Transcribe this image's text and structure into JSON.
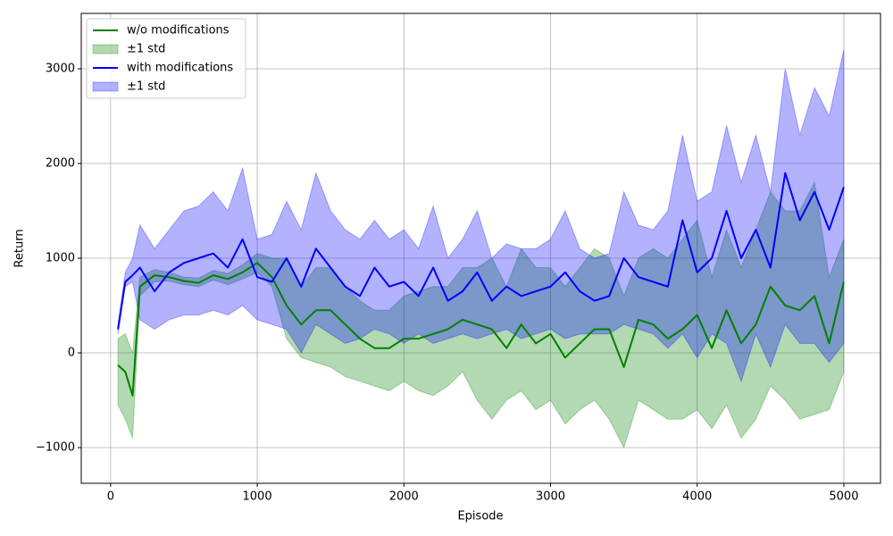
{
  "chart_data": {
    "type": "line",
    "x_label": "Episode",
    "y_label": "Return",
    "xlim": [
      -200,
      5250
    ],
    "ylim": [
      -1377,
      3585
    ],
    "xticks": [
      0,
      1000,
      2000,
      3000,
      4000,
      5000
    ],
    "yticks": [
      {
        "value": -1000,
        "label": "−1000"
      },
      0,
      1000,
      2000,
      3000
    ],
    "grid": true,
    "legend": "upper left",
    "x": [
      50,
      100,
      150,
      200,
      300,
      400,
      500,
      600,
      700,
      800,
      900,
      1000,
      1100,
      1200,
      1300,
      1400,
      1500,
      1600,
      1700,
      1800,
      1900,
      2000,
      2100,
      2200,
      2300,
      2400,
      2500,
      2600,
      2700,
      2800,
      2900,
      3000,
      3100,
      3200,
      3300,
      3400,
      3500,
      3600,
      3700,
      3800,
      3900,
      4000,
      4100,
      4200,
      4300,
      4400,
      4500,
      4600,
      4700,
      4800,
      4900,
      5000
    ],
    "series": [
      {
        "name": "w/o modifications",
        "color": "green",
        "values": [
          -130,
          -200,
          -450,
          700,
          820,
          800,
          760,
          740,
          820,
          780,
          850,
          950,
          800,
          500,
          300,
          450,
          450,
          300,
          150,
          50,
          50,
          150,
          150,
          200,
          250,
          350,
          300,
          250,
          50,
          300,
          100,
          200,
          -50,
          100,
          250,
          250,
          -150,
          350,
          300,
          150,
          250,
          400,
          50,
          450,
          100,
          300,
          700,
          500,
          450,
          600,
          100,
          750
        ]
      },
      {
        "name": "±1 std",
        "color": "green",
        "lower": [
          -550,
          -700,
          -900,
          600,
          750,
          760,
          720,
          700,
          770,
          720,
          780,
          850,
          700,
          150,
          -50,
          -100,
          -150,
          -250,
          -300,
          -350,
          -400,
          -300,
          -400,
          -450,
          -350,
          -200,
          -500,
          -700,
          -500,
          -400,
          -600,
          -500,
          -750,
          -600,
          -500,
          -700,
          -1000,
          -500,
          -600,
          -700,
          -700,
          -600,
          -800,
          -550,
          -900,
          -700,
          -350,
          -500,
          -700,
          -650,
          -600,
          -200
        ],
        "upper": [
          150,
          200,
          0,
          800,
          880,
          850,
          800,
          790,
          870,
          840,
          930,
          1050,
          1000,
          1000,
          700,
          900,
          900,
          700,
          550,
          450,
          450,
          600,
          650,
          700,
          700,
          900,
          900,
          1000,
          700,
          1100,
          900,
          900,
          700,
          900,
          1100,
          1000,
          600,
          1000,
          1100,
          1000,
          1200,
          1400,
          800,
          1300,
          900,
          1300,
          1700,
          1500,
          1500,
          1800,
          800,
          1200
        ]
      },
      {
        "name": "with modifications",
        "color": "blue",
        "values": [
          250,
          750,
          820,
          900,
          650,
          850,
          950,
          1000,
          1050,
          900,
          1200,
          800,
          750,
          1000,
          700,
          1100,
          900,
          700,
          600,
          900,
          700,
          750,
          600,
          900,
          550,
          650,
          850,
          550,
          700,
          600,
          650,
          700,
          850,
          650,
          550,
          600,
          1000,
          800,
          750,
          700,
          1400,
          850,
          1000,
          1500,
          1000,
          1300,
          900,
          1900,
          1400,
          1700,
          1300,
          1750
        ]
      },
      {
        "name": "±1 std",
        "color": "blue",
        "lower": [
          200,
          700,
          750,
          350,
          250,
          350,
          400,
          400,
          450,
          400,
          500,
          350,
          300,
          250,
          0,
          300,
          200,
          100,
          150,
          250,
          200,
          100,
          200,
          100,
          150,
          200,
          150,
          200,
          250,
          150,
          200,
          250,
          150,
          200,
          200,
          200,
          300,
          250,
          200,
          50,
          200,
          -50,
          200,
          100,
          -300,
          200,
          -150,
          300,
          100,
          100,
          -100,
          100
        ],
        "upper": [
          300,
          850,
          1000,
          1350,
          1100,
          1300,
          1500,
          1550,
          1700,
          1500,
          1950,
          1200,
          1250,
          1600,
          1300,
          1900,
          1500,
          1300,
          1200,
          1400,
          1200,
          1300,
          1100,
          1550,
          1000,
          1200,
          1500,
          1000,
          1150,
          1100,
          1100,
          1200,
          1500,
          1100,
          1000,
          1050,
          1700,
          1350,
          1300,
          1500,
          2300,
          1600,
          1700,
          2400,
          1800,
          2300,
          1700,
          3000,
          2300,
          2800,
          2500,
          3200
        ]
      }
    ]
  }
}
